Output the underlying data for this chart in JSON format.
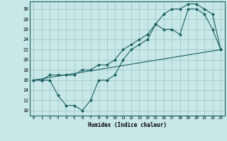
{
  "xlabel": "Humidex (Indice chaleur)",
  "background_color": "#c8e8e8",
  "grid_color": "#a0c8c8",
  "line_color": "#1a6060",
  "xlim": [
    -0.5,
    23.5
  ],
  "ylim": [
    9,
    31.5
  ],
  "xticks": [
    0,
    1,
    2,
    3,
    4,
    5,
    6,
    7,
    8,
    9,
    10,
    11,
    12,
    13,
    14,
    15,
    16,
    17,
    18,
    19,
    20,
    21,
    22,
    23
  ],
  "yticks": [
    10,
    12,
    14,
    16,
    18,
    20,
    22,
    24,
    26,
    28,
    30
  ],
  "line1_x": [
    0,
    1,
    2,
    3,
    4,
    5,
    6,
    7,
    8,
    9,
    10,
    11,
    12,
    13,
    14,
    15,
    16,
    17,
    18,
    19,
    20,
    21,
    22,
    23
  ],
  "line1_y": [
    16,
    16,
    16,
    13,
    11,
    11,
    10,
    12,
    16,
    16,
    17,
    20,
    22,
    23,
    24,
    27,
    26,
    26,
    25,
    30,
    30,
    29,
    26,
    22
  ],
  "line2_x": [
    0,
    1,
    2,
    3,
    4,
    5,
    6,
    7,
    8,
    9,
    10,
    11,
    12,
    13,
    14,
    15,
    16,
    17,
    18,
    19,
    20,
    21,
    22,
    23
  ],
  "line2_y": [
    16,
    16,
    17,
    17,
    17,
    17,
    18,
    18,
    19,
    19,
    20,
    22,
    23,
    24,
    25,
    27,
    29,
    30,
    30,
    31,
    31,
    30,
    29,
    22
  ],
  "line3_x": [
    0,
    23
  ],
  "line3_y": [
    16,
    22
  ]
}
